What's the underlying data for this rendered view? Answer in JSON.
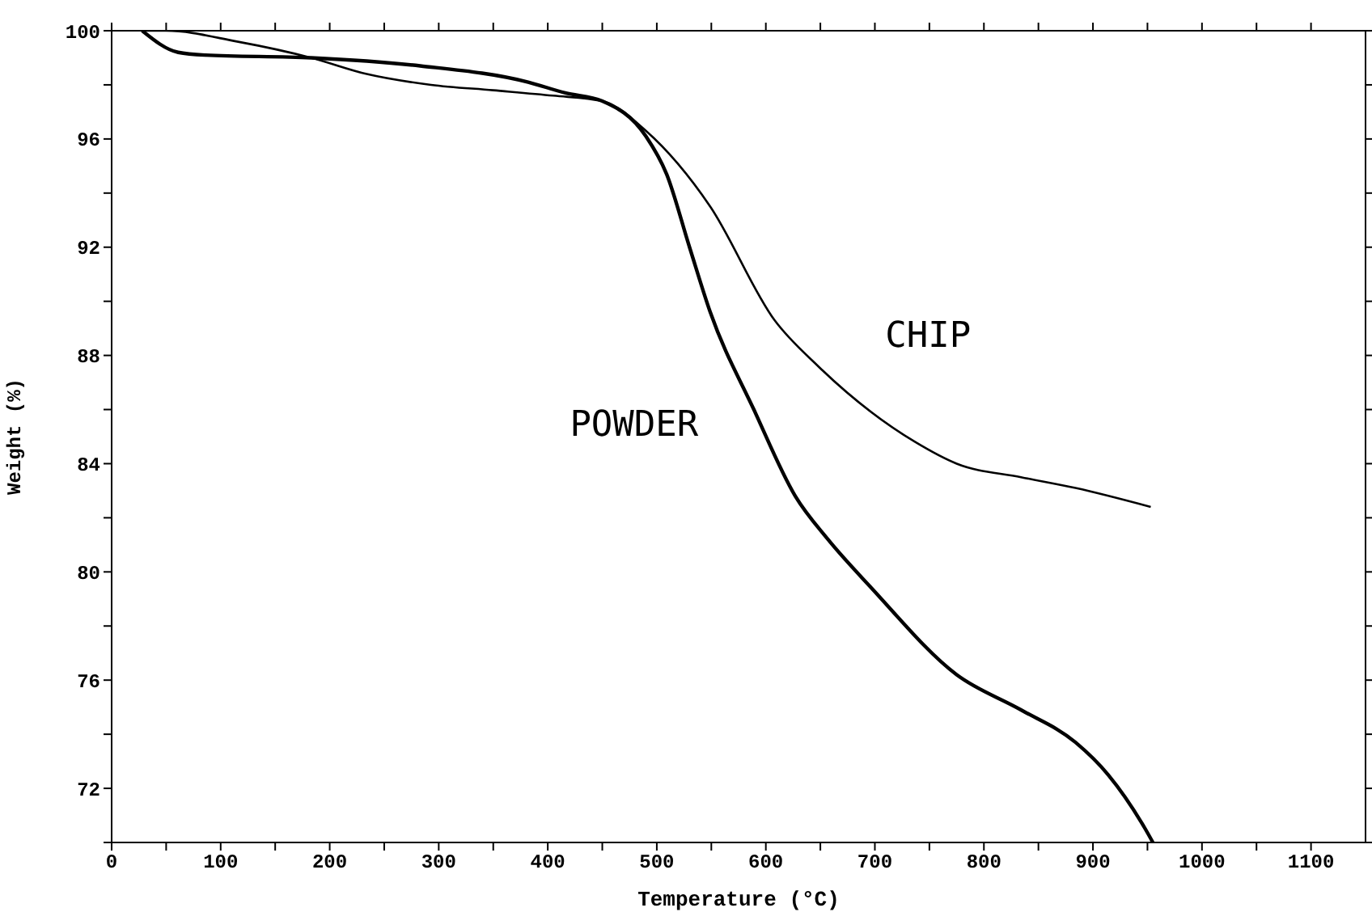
{
  "chart_data": {
    "type": "line",
    "xlabel": "Temperature (°C)",
    "ylabel": "Weight (%)",
    "xlim": [
      0,
      1150
    ],
    "ylim": [
      70,
      100
    ],
    "xticks": [
      0,
      {
        "value": 50,
        "label": null
      },
      100,
      {
        "value": 150,
        "label": null
      },
      200,
      {
        "value": 250,
        "label": null
      },
      300,
      {
        "value": 350,
        "label": null
      },
      400,
      {
        "value": 450,
        "label": null
      },
      500,
      {
        "value": 550,
        "label": null
      },
      600,
      {
        "value": 650,
        "label": null
      },
      700,
      {
        "value": 750,
        "label": null
      },
      800,
      {
        "value": 850,
        "label": null
      },
      900,
      {
        "value": 950,
        "label": null
      },
      1000,
      {
        "value": 1050,
        "label": null
      },
      1100
    ],
    "yticks": [
      {
        "value": 70,
        "label": null
      },
      72,
      {
        "value": 74,
        "label": null
      },
      76,
      {
        "value": 78,
        "label": null
      },
      80,
      {
        "value": 82,
        "label": null
      },
      84,
      {
        "value": 86,
        "label": null
      },
      88,
      {
        "value": 90,
        "label": null
      },
      92,
      {
        "value": 94,
        "label": null
      },
      96,
      {
        "value": 98,
        "label": null
      },
      100
    ],
    "grid": false,
    "marker": "none",
    "line_style": "solid",
    "series": [
      {
        "name": "CHIP",
        "color": "#000000",
        "x": [
          30,
          50,
          115,
          183,
          234,
          293,
          350,
          405,
          450,
          490,
          549,
          608,
          648,
          737,
          775,
          834,
          884,
          953
        ],
        "values": [
          100,
          100,
          99.6,
          99.0,
          98.4,
          98.0,
          97.8,
          97.6,
          97.4,
          96.3,
          93.5,
          89.3,
          87.6,
          84.8,
          84.0,
          83.5,
          83.1,
          82.4
        ]
      },
      {
        "name": "POWDER",
        "color": "#000000",
        "x": [
          28,
          61,
          86,
          183,
          283,
          382,
          416,
          450,
          490,
          509,
          530,
          549,
          589,
          627,
          657,
          697,
          775,
          834,
          884,
          914,
          948,
          955
        ],
        "values": [
          100,
          99.2,
          99.1,
          99.0,
          98.7,
          98.1,
          97.7,
          97.4,
          96.1,
          94.7,
          92.0,
          89.6,
          86.0,
          82.8,
          81.2,
          79.4,
          76.2,
          74.9,
          73.7,
          72.5,
          70.5,
          70
        ]
      }
    ]
  }
}
